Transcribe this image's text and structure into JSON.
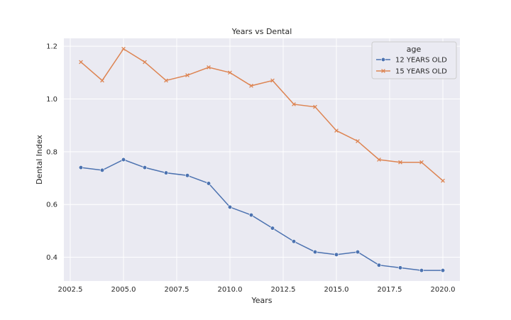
{
  "chart_data": {
    "type": "line",
    "title": "Years vs Dental",
    "xlabel": "Years",
    "ylabel": "Dental Index",
    "xlim": [
      2002.2,
      2020.8
    ],
    "ylim": [
      0.31,
      1.23
    ],
    "xticks": [
      2002.5,
      2005.0,
      2007.5,
      2010.0,
      2012.5,
      2015.0,
      2017.5,
      2020.0
    ],
    "xtick_labels": [
      "2002.5",
      "2005.0",
      "2007.5",
      "2010.0",
      "2012.5",
      "2015.0",
      "2017.5",
      "2020.0"
    ],
    "yticks": [
      0.4,
      0.6,
      0.8,
      1.0,
      1.2
    ],
    "ytick_labels": [
      "0.4",
      "0.6",
      "0.8",
      "1.0",
      "1.2"
    ],
    "grid": true,
    "background": "#eaeaf2",
    "legend": {
      "title": "age",
      "placement": "top-right"
    },
    "x": [
      2003,
      2004,
      2005,
      2006,
      2007,
      2008,
      2009,
      2010,
      2011,
      2012,
      2013,
      2014,
      2015,
      2016,
      2017,
      2018,
      2019,
      2020
    ],
    "series": [
      {
        "name": "12 YEARS OLD",
        "color": "#4c72b0",
        "marker": "circle",
        "values": [
          0.74,
          0.73,
          0.77,
          0.74,
          0.72,
          0.71,
          0.68,
          0.59,
          0.56,
          0.51,
          0.46,
          0.42,
          0.41,
          0.42,
          0.37,
          0.36,
          0.35,
          0.35
        ]
      },
      {
        "name": "15 YEARS OLD",
        "color": "#dd8452",
        "marker": "x",
        "values": [
          1.14,
          1.07,
          1.19,
          1.14,
          1.07,
          1.09,
          1.12,
          1.1,
          1.05,
          1.07,
          0.98,
          0.97,
          0.88,
          0.84,
          0.77,
          0.76,
          0.76,
          0.69
        ]
      }
    ]
  }
}
